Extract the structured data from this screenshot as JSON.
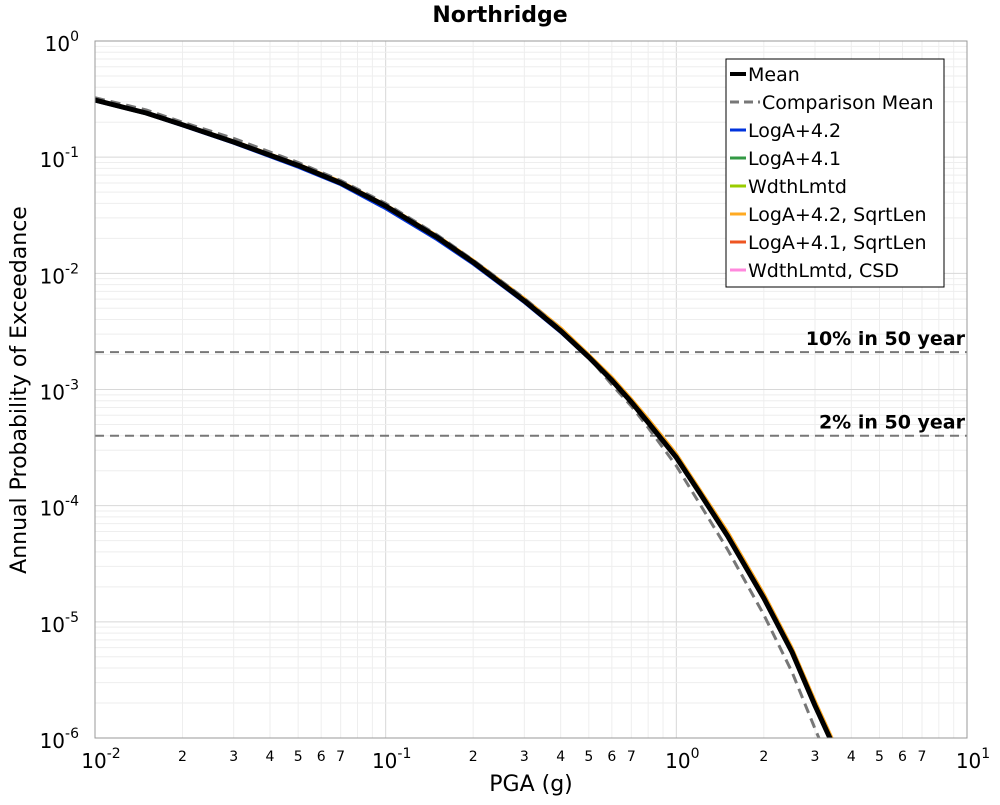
{
  "chart_data": {
    "type": "line",
    "title": "Northridge",
    "xlabel": "PGA (g)",
    "ylabel": "Annual Probability of Exceedance",
    "xscale": "log",
    "yscale": "log",
    "xlim": [
      0.01,
      10
    ],
    "ylim": [
      1e-06,
      1
    ],
    "grid": true,
    "legend_position": "top-right",
    "x_major_ticks": [
      {
        "base": "10",
        "exp": "-2"
      },
      {
        "base": "10",
        "exp": "-1"
      },
      {
        "base": "10",
        "exp": "0"
      },
      {
        "base": "10",
        "exp": "1"
      }
    ],
    "y_major_ticks": [
      {
        "base": "10",
        "exp": "0"
      },
      {
        "base": "10",
        "exp": "-1"
      },
      {
        "base": "10",
        "exp": "-2"
      },
      {
        "base": "10",
        "exp": "-3"
      },
      {
        "base": "10",
        "exp": "-4"
      },
      {
        "base": "10",
        "exp": "-5"
      },
      {
        "base": "10",
        "exp": "-6"
      }
    ],
    "x_minor_tick_labels": [
      "2",
      "3",
      "4",
      "5",
      "6",
      "7"
    ],
    "reference_lines": [
      {
        "label": "10% in 50 year",
        "y": 0.0021,
        "color": "#777777"
      },
      {
        "label": "2% in 50 year",
        "y": 0.0004,
        "color": "#777777"
      }
    ],
    "series": [
      {
        "name": "Mean",
        "color": "#000000",
        "style": "solid",
        "width": 5,
        "x": [
          0.01,
          0.015,
          0.02,
          0.03,
          0.05,
          0.07,
          0.1,
          0.15,
          0.2,
          0.3,
          0.4,
          0.5,
          0.6,
          0.7,
          0.8,
          1.0,
          1.2,
          1.5,
          2.0,
          2.5,
          3.0,
          3.5
        ],
        "y": [
          0.31,
          0.24,
          0.19,
          0.135,
          0.085,
          0.06,
          0.038,
          0.0205,
          0.0125,
          0.0058,
          0.0032,
          0.0019,
          0.0012,
          0.00078,
          0.00052,
          0.00026,
          0.00013,
          5.5e-05,
          1.6e-05,
          5.5e-06,
          1.9e-06,
          8.2e-07
        ]
      },
      {
        "name": "Comparison Mean",
        "color": "#777777",
        "style": "dashed",
        "width": 3,
        "x": [
          0.01,
          0.015,
          0.02,
          0.03,
          0.05,
          0.07,
          0.1,
          0.15,
          0.2,
          0.3,
          0.4,
          0.5,
          0.6,
          0.7,
          0.8,
          1.0,
          1.2,
          1.5,
          2.0,
          2.5,
          3.0,
          3.5
        ],
        "y": [
          0.325,
          0.255,
          0.2,
          0.145,
          0.09,
          0.063,
          0.04,
          0.0215,
          0.013,
          0.0061,
          0.0033,
          0.0019,
          0.0011,
          0.00072,
          0.00047,
          0.00022,
          0.000105,
          4.2e-05,
          1.15e-05,
          3.7e-06,
          1.2e-06,
          4.8e-07
        ]
      },
      {
        "name": "LogA+4.2",
        "color": "#0033dd",
        "style": "solid",
        "width": 3,
        "x": [
          0.01,
          0.015,
          0.02,
          0.03,
          0.05,
          0.07,
          0.1,
          0.15,
          0.2,
          0.3,
          0.4,
          0.5,
          0.6,
          0.7,
          0.8,
          1.0,
          1.2,
          1.5,
          2.0,
          2.5,
          3.0,
          3.5
        ],
        "y": [
          0.305,
          0.236,
          0.186,
          0.132,
          0.082,
          0.058,
          0.036,
          0.0195,
          0.012,
          0.0056,
          0.0031,
          0.00185,
          0.00118,
          0.00077,
          0.00052,
          0.00026,
          0.00013,
          5.5e-05,
          1.6e-05,
          5.5e-06,
          1.9e-06,
          8.2e-07
        ]
      },
      {
        "name": "LogA+4.1",
        "color": "#339944",
        "style": "solid",
        "width": 3,
        "x": [
          0.01,
          0.015,
          0.02,
          0.03,
          0.05,
          0.07,
          0.1,
          0.15,
          0.2,
          0.3,
          0.4,
          0.5,
          0.6,
          0.7,
          0.8,
          1.0,
          1.2,
          1.5,
          2.0,
          2.5,
          3.0,
          3.5
        ],
        "y": [
          0.31,
          0.24,
          0.19,
          0.135,
          0.085,
          0.06,
          0.038,
          0.0205,
          0.0125,
          0.0058,
          0.0032,
          0.0019,
          0.0012,
          0.00078,
          0.00052,
          0.00026,
          0.00013,
          5.5e-05,
          1.6e-05,
          5.5e-06,
          1.9e-06,
          8.2e-07
        ]
      },
      {
        "name": "WdthLmtd",
        "color": "#99cc00",
        "style": "solid",
        "width": 3,
        "x": [
          0.01,
          0.015,
          0.02,
          0.03,
          0.05,
          0.07,
          0.1,
          0.15,
          0.2,
          0.3,
          0.4,
          0.5,
          0.6,
          0.7,
          0.8,
          1.0,
          1.2,
          1.5,
          2.0,
          2.5,
          3.0,
          3.5
        ],
        "y": [
          0.31,
          0.24,
          0.19,
          0.135,
          0.085,
          0.06,
          0.038,
          0.0205,
          0.0125,
          0.0058,
          0.0032,
          0.0019,
          0.0012,
          0.00078,
          0.00052,
          0.00026,
          0.00013,
          5.5e-05,
          1.6e-05,
          5.5e-06,
          1.9e-06,
          8.2e-07
        ]
      },
      {
        "name": "LogA+4.2, SqrtLen",
        "color": "#ffaa22",
        "style": "solid",
        "width": 3,
        "x": [
          0.01,
          0.015,
          0.02,
          0.03,
          0.05,
          0.07,
          0.1,
          0.15,
          0.2,
          0.3,
          0.4,
          0.5,
          0.6,
          0.7,
          0.8,
          1.0,
          1.2,
          1.5,
          2.0,
          2.5,
          3.0,
          3.5
        ],
        "y": [
          0.315,
          0.244,
          0.193,
          0.138,
          0.087,
          0.062,
          0.039,
          0.0212,
          0.013,
          0.0061,
          0.0034,
          0.002,
          0.00128,
          0.00083,
          0.00056,
          0.00028,
          0.00014,
          6e-05,
          1.75e-05,
          6e-06,
          2.1e-06,
          9e-07
        ]
      },
      {
        "name": "LogA+4.1, SqrtLen",
        "color": "#ee5522",
        "style": "solid",
        "width": 3,
        "x": [
          0.01,
          0.015,
          0.02,
          0.03,
          0.05,
          0.07,
          0.1,
          0.15,
          0.2,
          0.3,
          0.4,
          0.5,
          0.6,
          0.7,
          0.8,
          1.0,
          1.2,
          1.5,
          2.0,
          2.5,
          3.0,
          3.5
        ],
        "y": [
          0.31,
          0.24,
          0.19,
          0.135,
          0.085,
          0.06,
          0.038,
          0.0205,
          0.0125,
          0.0058,
          0.0032,
          0.0019,
          0.0012,
          0.00078,
          0.00052,
          0.00026,
          0.00013,
          5.5e-05,
          1.6e-05,
          5.5e-06,
          1.9e-06,
          8.2e-07
        ]
      },
      {
        "name": "WdthLmtd, CSD",
        "color": "#ff88dd",
        "style": "solid",
        "width": 3,
        "x": [
          0.01,
          0.015,
          0.02,
          0.03,
          0.05,
          0.07,
          0.1,
          0.15,
          0.2,
          0.3,
          0.4,
          0.5,
          0.6,
          0.7,
          0.8,
          1.0,
          1.2,
          1.5,
          2.0,
          2.5,
          3.0,
          3.5
        ],
        "y": [
          0.31,
          0.24,
          0.19,
          0.135,
          0.085,
          0.06,
          0.038,
          0.0205,
          0.0125,
          0.0058,
          0.0032,
          0.0019,
          0.0012,
          0.00078,
          0.00052,
          0.00026,
          0.00013,
          5.5e-05,
          1.6e-05,
          5.5e-06,
          1.9e-06,
          8.2e-07
        ]
      }
    ],
    "draw_order": [
      "LogA+4.2",
      "LogA+4.1",
      "WdthLmtd",
      "LogA+4.1, SqrtLen",
      "WdthLmtd, CSD",
      "LogA+4.2, SqrtLen",
      "Comparison Mean",
      "Mean"
    ]
  }
}
